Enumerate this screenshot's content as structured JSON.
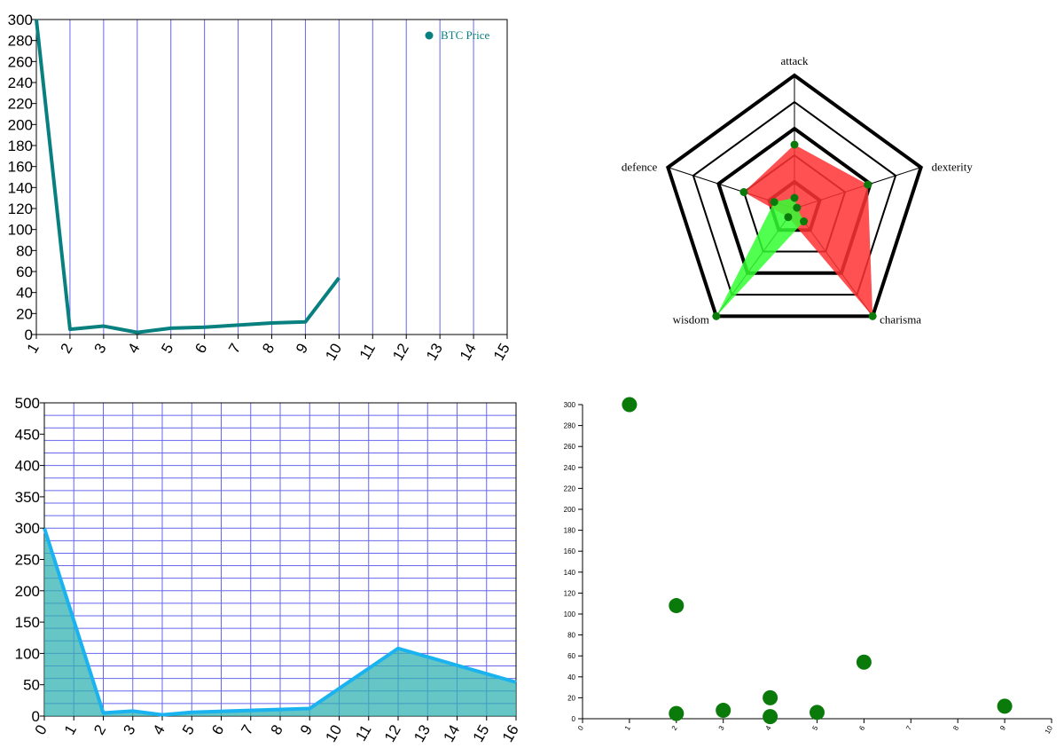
{
  "colors": {
    "line": "#088080",
    "grid": "#6666ee",
    "area_stroke": "#1ab3f0",
    "area_fill": "#33b2b2",
    "radar_red": "#ff3333",
    "radar_green": "#33ff33",
    "dot": "#0a7a0a",
    "scatter": "#0a7a0a"
  },
  "chart_data": [
    {
      "type": "line",
      "legend": [
        "BTC Price"
      ],
      "legend_position": "top-right",
      "x": [
        1,
        2,
        3,
        4,
        5,
        6,
        7,
        8,
        9,
        10
      ],
      "values": [
        300,
        5,
        8,
        2,
        6,
        7,
        9,
        11,
        12,
        54
      ],
      "xlim": [
        1,
        15
      ],
      "ylim": [
        0,
        300
      ],
      "x_ticks": [
        "1",
        "2",
        "3",
        "4",
        "5",
        "6",
        "7",
        "8",
        "9",
        "10",
        "11",
        "12",
        "13",
        "14",
        "15"
      ],
      "y_ticks": [
        "0",
        "20",
        "40",
        "60",
        "80",
        "100",
        "120",
        "140",
        "160",
        "180",
        "200",
        "220",
        "240",
        "260",
        "280",
        "300"
      ],
      "grid": "vertical"
    },
    {
      "type": "radar",
      "axes": [
        "attack",
        "dexterity",
        "charisma",
        "wisdom",
        "defence"
      ],
      "levels": 5,
      "range": [
        0,
        5
      ],
      "series": [
        {
          "values": [
            2.4,
            2.9,
            5,
            0.4,
            2.0
          ]
        },
        {
          "values": [
            0.4,
            0.1,
            0.6,
            5,
            0.8
          ]
        }
      ]
    },
    {
      "type": "area",
      "x": [
        0,
        2,
        3,
        4,
        5,
        9,
        12,
        16
      ],
      "values": [
        300,
        5,
        8,
        2,
        6,
        12,
        108,
        54
      ],
      "xlim": [
        0,
        16
      ],
      "ylim": [
        0,
        500
      ],
      "x_ticks": [
        "0",
        "1",
        "2",
        "3",
        "4",
        "5",
        "6",
        "7",
        "8",
        "9",
        "10",
        "11",
        "12",
        "13",
        "14",
        "15",
        "16"
      ],
      "y_ticks": [
        "0",
        "50",
        "100",
        "150",
        "200",
        "250",
        "300",
        "350",
        "400",
        "450",
        "500"
      ],
      "grid": "both"
    },
    {
      "type": "scatter",
      "points": [
        [
          1,
          300
        ],
        [
          2,
          108
        ],
        [
          2,
          5
        ],
        [
          3,
          8
        ],
        [
          4,
          20
        ],
        [
          4,
          2
        ],
        [
          5,
          6
        ],
        [
          6,
          54
        ],
        [
          9,
          12
        ]
      ],
      "xlim": [
        0,
        10
      ],
      "ylim": [
        0,
        300
      ],
      "x_ticks": [
        "0",
        "1",
        "2",
        "3",
        "4",
        "5",
        "6",
        "7",
        "8",
        "9",
        "10"
      ],
      "y_ticks": [
        "0",
        "20",
        "40",
        "60",
        "80",
        "100",
        "120",
        "140",
        "160",
        "180",
        "200",
        "220",
        "240",
        "260",
        "280",
        "300"
      ]
    }
  ]
}
